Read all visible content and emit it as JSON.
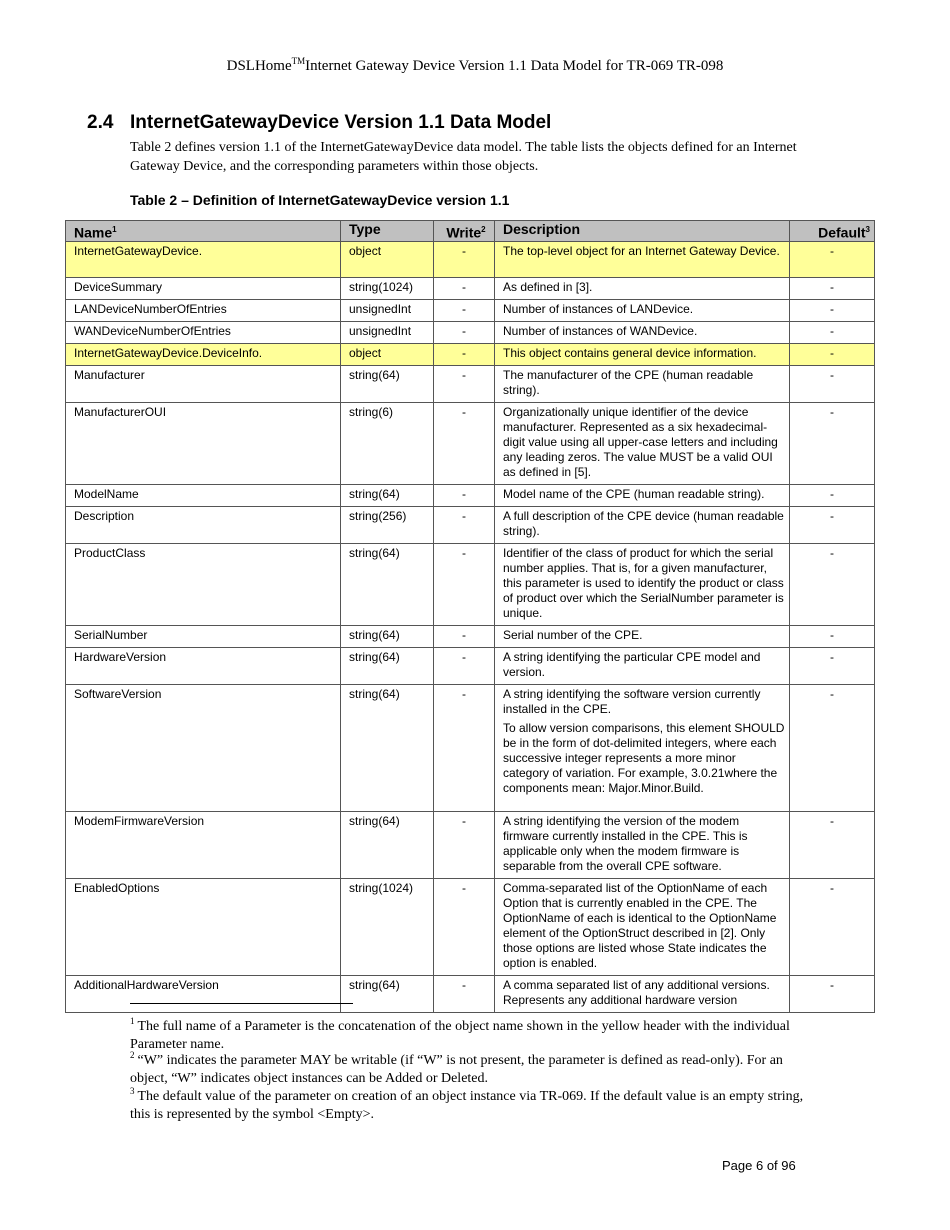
{
  "header": {
    "title_pre": "DSLHome",
    "tm": "TM",
    "title_post": "Internet Gateway Device Version 1.1 Data Model for TR-069   TR-098"
  },
  "section": {
    "number": "2.4",
    "title": "InternetGatewayDevice Version 1.1 Data Model",
    "intro": "Table 2 defines version 1.1 of the InternetGatewayDevice data model.  The table lists the objects defined for an Internet Gateway Device, and the corresponding parameters within those objects."
  },
  "table": {
    "caption": "Table 2 – Definition of InternetGatewayDevice version 1.1",
    "columns": [
      {
        "label": "Name",
        "sup": "1"
      },
      {
        "label": "Type",
        "sup": ""
      },
      {
        "label": "Write",
        "sup": "2"
      },
      {
        "label": "Description",
        "sup": ""
      },
      {
        "label": "Default",
        "sup": "3"
      }
    ],
    "rows": [
      {
        "object": true,
        "name": "InternetGatewayDevice.",
        "type": "object",
        "write": "-",
        "description": [
          "The top-level object for an Internet Gateway Device."
        ],
        "default": "-"
      },
      {
        "name": "DeviceSummary",
        "type": "string(1024)",
        "write": "-",
        "description": [
          "As defined in [3]."
        ],
        "default": "-"
      },
      {
        "name": "LANDeviceNumberOfEntries",
        "type": "unsignedInt",
        "write": "-",
        "description": [
          "Number of instances of LANDevice."
        ],
        "default": "-"
      },
      {
        "name": "WANDeviceNumberOfEntries",
        "type": "unsignedInt",
        "write": "-",
        "description": [
          "Number of instances of WANDevice."
        ],
        "default": "-"
      },
      {
        "object": true,
        "name": "InternetGatewayDevice.DeviceInfo.",
        "type": "object",
        "write": "-",
        "description": [
          "This object contains general device information."
        ],
        "default": "-"
      },
      {
        "name": "Manufacturer",
        "type": "string(64)",
        "write": "-",
        "description": [
          "The manufacturer of the CPE (human readable string)."
        ],
        "default": "-"
      },
      {
        "name": "ManufacturerOUI",
        "type": "string(6)",
        "write": "-",
        "description": [
          "Organizationally unique identifier of the device manufacturer.  Represented as a six hexadecimal-digit value using all upper-case letters and including any leading zeros.  The value MUST be a valid OUI as defined in [5]."
        ],
        "default": "-"
      },
      {
        "name": "ModelName",
        "type": "string(64)",
        "write": "-",
        "description": [
          "Model name of the CPE (human readable string)."
        ],
        "default": "-"
      },
      {
        "name": "Description",
        "type": "string(256)",
        "write": "-",
        "description": [
          "A full description of the CPE device (human readable string)."
        ],
        "default": "-"
      },
      {
        "name": "ProductClass",
        "type": "string(64)",
        "write": "-",
        "description": [
          "Identifier of the class of product for which the serial number applies.  That is, for a given manufacturer, this parameter is used to identify the product or class of product over which the SerialNumber parameter is unique."
        ],
        "default": "-"
      },
      {
        "name": "SerialNumber",
        "type": "string(64)",
        "write": "-",
        "description": [
          "Serial number of the CPE."
        ],
        "default": "-"
      },
      {
        "name": "HardwareVersion",
        "type": "string(64)",
        "write": "-",
        "description": [
          "A string identifying the particular CPE model and version."
        ],
        "default": "-"
      },
      {
        "name": "SoftwareVersion",
        "type": "string(64)",
        "write": "-",
        "description": [
          "A string identifying the software version currently installed in the CPE.",
          "To allow version comparisons, this element SHOULD be in the form of dot-delimited integers, where each successive integer represents a more minor category of variation.  For example, 3.0.21where the components mean: Major.Minor.Build."
        ],
        "default": "-"
      },
      {
        "name": "ModemFirmwareVersion",
        "type": "string(64)",
        "write": "-",
        "description": [
          "A string identifying the version of the modem firmware currently installed in the CPE.  This is applicable only when the modem firmware is separable from the overall CPE software."
        ],
        "default": "-"
      },
      {
        "name": "EnabledOptions",
        "type": "string(1024)",
        "write": "-",
        "description": [
          "Comma-separated list of the OptionName of each Option that is currently enabled in the CPE.  The OptionName of each is identical to the OptionName element of the OptionStruct described in [2].  Only those options are listed whose State indicates the option is enabled."
        ],
        "default": "-"
      },
      {
        "name": "AdditionalHardwareVersion",
        "type": "string(64)",
        "write": "-",
        "description": [
          "A comma separated list of any additional versions. Represents any additional hardware version"
        ],
        "default": "-"
      }
    ]
  },
  "footnotes": [
    {
      "mark": "1",
      "text": "The full name of a Parameter is the concatenation of the object name shown in the yellow header with the individual Parameter name."
    },
    {
      "mark": "2",
      "text": "“W” indicates the parameter MAY be writable (if “W” is not present, the parameter is defined as read-only).  For an object, “W” indicates object instances can be Added or Deleted."
    },
    {
      "mark": "3",
      "text": "The default value of the parameter on creation of an object instance via TR-069.  If the default value is an empty string, this is represented by the symbol <Empty>."
    }
  ],
  "footer": {
    "page": "Page 6 of 96"
  },
  "colors": {
    "object_row": "#ffff99",
    "header_row": "#c0c0c0"
  }
}
